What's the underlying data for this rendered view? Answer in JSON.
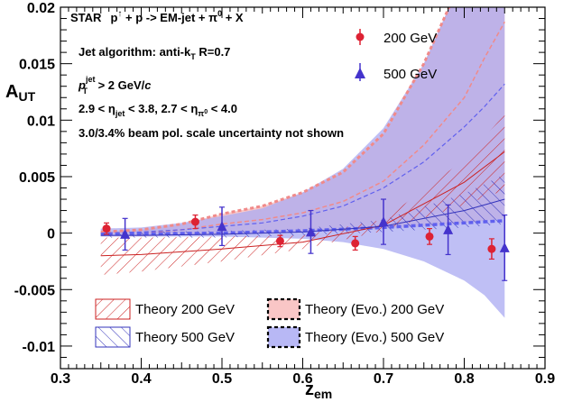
{
  "chart_data": {
    "type": "scatter",
    "x_axis": {
      "range": [
        0.3,
        0.9
      ],
      "ticks": [
        0.3,
        0.4,
        0.5,
        0.6,
        0.7,
        0.8,
        0.9
      ],
      "tick_labels": [
        "0.3",
        "0.4",
        "0.5",
        "0.6",
        "0.7",
        "0.8",
        "0.9"
      ],
      "label_main": "z",
      "label_sub": "em"
    },
    "y_axis": {
      "range": [
        -0.012,
        0.02
      ],
      "ticks": [
        -0.01,
        -0.005,
        0,
        0.005,
        0.01,
        0.015,
        0.02
      ],
      "tick_labels": [
        "-0.01",
        "-0.005",
        "0",
        "0.005",
        "0.01",
        "0.015",
        "0.02"
      ],
      "label_main": "A",
      "label_sub": "UT"
    },
    "annotations": {
      "line1": {
        "star": "STAR",
        "p": "p",
        "arrow": "↑",
        "rest": " + p -> EM-jet + π",
        "sup": "0",
        "tail": " + X"
      },
      "line2": {
        "main": "Jet algorithm: anti-k",
        "sub": "T",
        "tail": " R=0.7"
      },
      "line3": {
        "p": "p",
        "sup": "jet",
        "sub": "T",
        "tail": " > 2 GeV/",
        "c": "c"
      },
      "line4": {
        "a": "2.9 < η",
        "sub1": "jet",
        "b": " < 3.8, 2.7 < η",
        "sub2": "π",
        "sub2sup": "0",
        "c": " < 4.0"
      },
      "line5": "3.0/3.4% beam pol. scale uncertainty not shown"
    },
    "legend": {
      "data_200": "200 GeV",
      "data_500": "500 GeV",
      "theory_200": "Theory 200 GeV",
      "theory_500": "Theory 500 GeV",
      "evo_200": "Theory (Evo.) 200 GeV",
      "evo_500": "Theory (Evo.) 500 GeV"
    },
    "colors": {
      "data_200": "#dd2233",
      "data_500": "#4433cc",
      "theory_200": "#cc2222",
      "theory_500": "#3333bb",
      "evo_200_fill": "#f9c6c6",
      "evo_500_fill": "#a9a9f2",
      "evo_200_line": "#f08a8a",
      "evo_500_line": "#6060ee"
    },
    "series": [
      {
        "name": "200 GeV",
        "marker": "circle",
        "points": [
          {
            "x": 0.357,
            "y": 0.0004,
            "err": 0.0005
          },
          {
            "x": 0.467,
            "y": 0.001,
            "err": 0.0006
          },
          {
            "x": 0.572,
            "y": -0.0007,
            "err": 0.0005
          },
          {
            "x": 0.665,
            "y": -0.0009,
            "err": 0.0006
          },
          {
            "x": 0.757,
            "y": -0.0003,
            "err": 0.0007
          },
          {
            "x": 0.834,
            "y": -0.0014,
            "err": 0.0009
          }
        ]
      },
      {
        "name": "500 GeV",
        "marker": "triangle",
        "points": [
          {
            "x": 0.38,
            "y": -0.0001,
            "err": 0.0014
          },
          {
            "x": 0.5,
            "y": 0.0006,
            "err": 0.0017
          },
          {
            "x": 0.61,
            "y": 0.0001,
            "err": 0.0019
          },
          {
            "x": 0.7,
            "y": 0.001,
            "err": 0.002
          },
          {
            "x": 0.78,
            "y": 0.0003,
            "err": 0.0022
          },
          {
            "x": 0.85,
            "y": -0.0013,
            "err": 0.0029
          }
        ]
      }
    ],
    "bands": {
      "theory_200": {
        "x": [
          0.35,
          0.4,
          0.5,
          0.6,
          0.7,
          0.8,
          0.85
        ],
        "lower": [
          -0.0037,
          -0.0034,
          -0.0025,
          -0.0014,
          0.0002,
          0.0025,
          0.0038
        ],
        "upper": [
          -0.0004,
          -0.0004,
          -0.0003,
          -0.0002,
          0.0012,
          0.0065,
          0.0105
        ],
        "mid": [
          -0.002,
          -0.0019,
          -0.0014,
          -0.0008,
          0.0007,
          0.0045,
          0.0072
        ]
      },
      "theory_500": {
        "x": [
          0.35,
          0.4,
          0.5,
          0.6,
          0.7,
          0.8,
          0.85
        ],
        "lower": [
          -0.0004,
          -0.0004,
          -0.0004,
          -0.0002,
          0.0001,
          0.0005,
          0.0008
        ],
        "upper": [
          0.0001,
          0.0001,
          0.0002,
          0.0004,
          0.0012,
          0.0035,
          0.0052
        ],
        "mid": [
          -0.0002,
          -0.0002,
          -0.0001,
          0.0001,
          0.0006,
          0.002,
          0.003
        ]
      },
      "evo_200": {
        "x": [
          0.35,
          0.4,
          0.45,
          0.5,
          0.55,
          0.6,
          0.65,
          0.7,
          0.75,
          0.8,
          0.825,
          0.85
        ],
        "lower": [
          -0.0003,
          -0.0003,
          -0.0002,
          -0.0001,
          0,
          0.0001,
          0.0002,
          0.0004,
          0.0006,
          0.0009,
          0.0011,
          0.0013
        ],
        "upper": [
          0.0001,
          0.0003,
          0.0008,
          0.0017,
          0.0024,
          0.0036,
          0.0054,
          0.0088,
          0.015,
          0.023,
          0.03,
          0.036
        ],
        "mid": [
          -0.0001,
          0,
          0.0003,
          0.0008,
          0.0012,
          0.0018,
          0.0028,
          0.0046,
          0.0078,
          0.012,
          0.0155,
          0.0187
        ]
      },
      "evo_500": {
        "x": [
          0.35,
          0.4,
          0.45,
          0.5,
          0.55,
          0.6,
          0.65,
          0.7,
          0.75,
          0.8,
          0.825,
          0.85
        ],
        "lower": [
          -0.0003,
          -0.0003,
          -0.0003,
          -0.0003,
          -0.0004,
          -0.0005,
          -0.0008,
          -0.0014,
          -0.0025,
          -0.0042,
          -0.0055,
          -0.0075
        ],
        "upper": [
          0.0004,
          0.0005,
          0.0009,
          0.0015,
          0.0022,
          0.0036,
          0.0057,
          0.0093,
          0.015,
          0.023,
          0.028,
          0.034
        ],
        "mid": [
          0,
          0.0001,
          0.0003,
          0.0006,
          0.0009,
          0.0015,
          0.0024,
          0.004,
          0.0063,
          0.0094,
          0.0112,
          0.0132
        ]
      }
    },
    "evo_lines": {
      "evo_500_dashed": {
        "x": [
          0.35,
          0.5,
          0.6,
          0.7,
          0.8,
          0.85
        ],
        "y": [
          -0.0001,
          0,
          0.0002,
          0.0005,
          0.0009,
          0.0011
        ]
      }
    }
  }
}
